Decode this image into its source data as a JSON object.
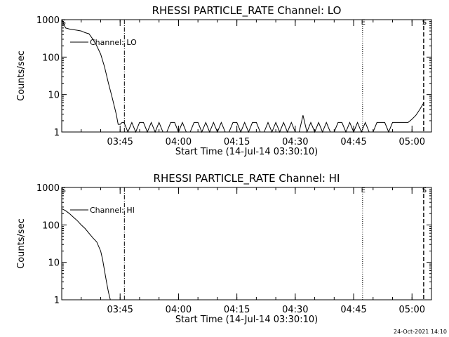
{
  "footer_timestamp": "24-Oct-2021 14:10",
  "colors": {
    "background": "#ffffff",
    "foreground": "#000000"
  },
  "chart_data": [
    {
      "type": "line",
      "title": "RHESSI PARTICLE_RATE Channel: LO",
      "xlabel": "Start Time (14-Jul-14 03:30:10)",
      "ylabel": "Counts/sec",
      "yscale": "log",
      "ylim": [
        1,
        1000
      ],
      "xlim_minutes": [
        0,
        95
      ],
      "x_tick_labels": [
        "03:45",
        "04:00",
        "04:15",
        "04:30",
        "04:45",
        "05:00"
      ],
      "x_tick_minutes": [
        15,
        30,
        45,
        60,
        75,
        90
      ],
      "y_tick_labels": [
        "1",
        "10",
        "100",
        "1000"
      ],
      "y_tick_values": [
        1,
        10,
        100,
        1000
      ],
      "legend": {
        "label": "Channel: LO",
        "placement": "upper-left"
      },
      "markers": [
        {
          "label": "S",
          "minute": 0.3,
          "style": "none"
        },
        {
          "label": "",
          "minute": 16.1,
          "style": "dash-dot"
        },
        {
          "label": "E",
          "minute": 77.3,
          "style": "dotted"
        },
        {
          "label": "S",
          "minute": 93.0,
          "style": "dashed"
        }
      ],
      "series": [
        {
          "x": [
            0,
            1,
            2,
            3,
            4,
            5,
            6,
            7,
            8,
            9,
            10,
            11,
            12,
            13,
            14,
            14.5,
            15,
            15.5,
            16,
            17,
            18,
            19,
            20,
            21,
            22,
            23,
            24,
            25,
            26,
            27,
            28,
            29,
            30,
            31,
            32,
            33,
            34,
            35,
            36,
            37,
            38,
            39,
            40,
            41,
            42,
            43,
            44,
            45,
            46,
            47,
            48,
            49,
            50,
            51,
            52,
            53,
            54,
            55,
            56,
            57,
            58,
            59,
            60,
            61,
            62,
            63,
            64,
            65,
            66,
            67,
            68,
            69,
            70,
            71,
            72,
            73,
            74,
            75,
            76,
            77,
            78,
            79,
            80,
            81,
            82,
            83,
            84,
            85,
            86,
            87,
            88,
            89,
            90,
            91,
            92,
            93
          ],
          "y": [
            1000,
            600,
            560,
            540,
            520,
            500,
            450,
            420,
            300,
            200,
            120,
            55,
            20,
            8,
            3,
            1.6,
            1.6,
            1.8,
            1.8,
            1,
            1.8,
            1,
            1.8,
            1.8,
            1,
            1.8,
            1,
            1.8,
            1,
            1,
            1.8,
            1.8,
            1,
            1.8,
            1,
            1,
            1.8,
            1.8,
            1,
            1.8,
            1,
            1.8,
            1,
            1.8,
            1,
            1,
            1.8,
            1.8,
            1,
            1.8,
            1,
            1.8,
            1.8,
            1,
            1,
            1.8,
            1,
            1.8,
            1,
            1.8,
            1,
            1.8,
            1,
            1,
            2.8,
            1,
            1.8,
            1,
            1.8,
            1,
            1.8,
            1,
            1,
            1.8,
            1.8,
            1,
            1.8,
            1,
            1.8,
            1,
            1.8,
            1,
            1,
            1.8,
            1.8,
            1.8,
            1,
            1.8,
            1.8,
            1.8,
            1.8,
            1.8,
            2.2,
            2.8,
            4,
            6
          ]
        }
      ]
    },
    {
      "type": "line",
      "title": "RHESSI PARTICLE_RATE Channel: HI",
      "xlabel": "Start Time (14-Jul-14 03:30:10)",
      "ylabel": "Counts/sec",
      "yscale": "log",
      "ylim": [
        1,
        1000
      ],
      "xlim_minutes": [
        0,
        95
      ],
      "x_tick_labels": [
        "03:45",
        "04:00",
        "04:15",
        "04:30",
        "04:45",
        "05:00"
      ],
      "x_tick_minutes": [
        15,
        30,
        45,
        60,
        75,
        90
      ],
      "y_tick_labels": [
        "1",
        "10",
        "100",
        "1000"
      ],
      "y_tick_values": [
        1,
        10,
        100,
        1000
      ],
      "legend": {
        "label": "Channel: HI",
        "placement": "upper-left"
      },
      "markers": [
        {
          "label": "S",
          "minute": 0.3,
          "style": "none"
        },
        {
          "label": "",
          "minute": 16.1,
          "style": "dash-dot"
        },
        {
          "label": "E",
          "minute": 77.3,
          "style": "dotted"
        },
        {
          "label": "S",
          "minute": 93.0,
          "style": "dashed"
        }
      ],
      "series": [
        {
          "x": [
            0,
            1,
            2,
            3,
            4,
            5,
            6,
            7,
            8,
            9,
            10,
            10.5,
            11,
            11.5,
            12,
            12.3,
            12.5
          ],
          "y": [
            270,
            240,
            200,
            160,
            130,
            100,
            80,
            60,
            45,
            35,
            20,
            12,
            6,
            3,
            1.6,
            1.2,
            1
          ]
        }
      ]
    }
  ]
}
